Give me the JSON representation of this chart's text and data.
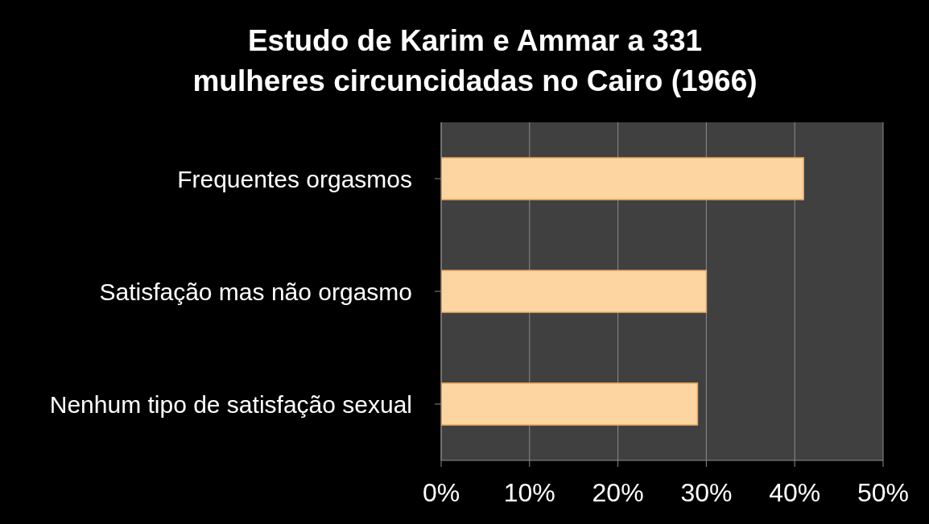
{
  "chart_data": {
    "type": "bar",
    "orientation": "horizontal",
    "title": "Estudo de Karim e Ammar a 331 mulheres circuncidadas no Cairo (1966)",
    "categories": [
      "Frequentes orgasmos",
      "Satisfação mas não orgasmo",
      "Nenhum tipo de satisfação sexual"
    ],
    "values": [
      41,
      30,
      29
    ],
    "color": "#fcd5a0",
    "xlim": [
      0,
      50
    ],
    "xticks": [
      {
        "value": 0,
        "label": "0%"
      },
      {
        "value": 10,
        "label": "10%"
      },
      {
        "value": 20,
        "label": "20%"
      },
      {
        "value": 30,
        "label": "30%"
      },
      {
        "value": 40,
        "label": "40%"
      },
      {
        "value": 50,
        "label": "50%"
      }
    ],
    "grid": "x"
  }
}
